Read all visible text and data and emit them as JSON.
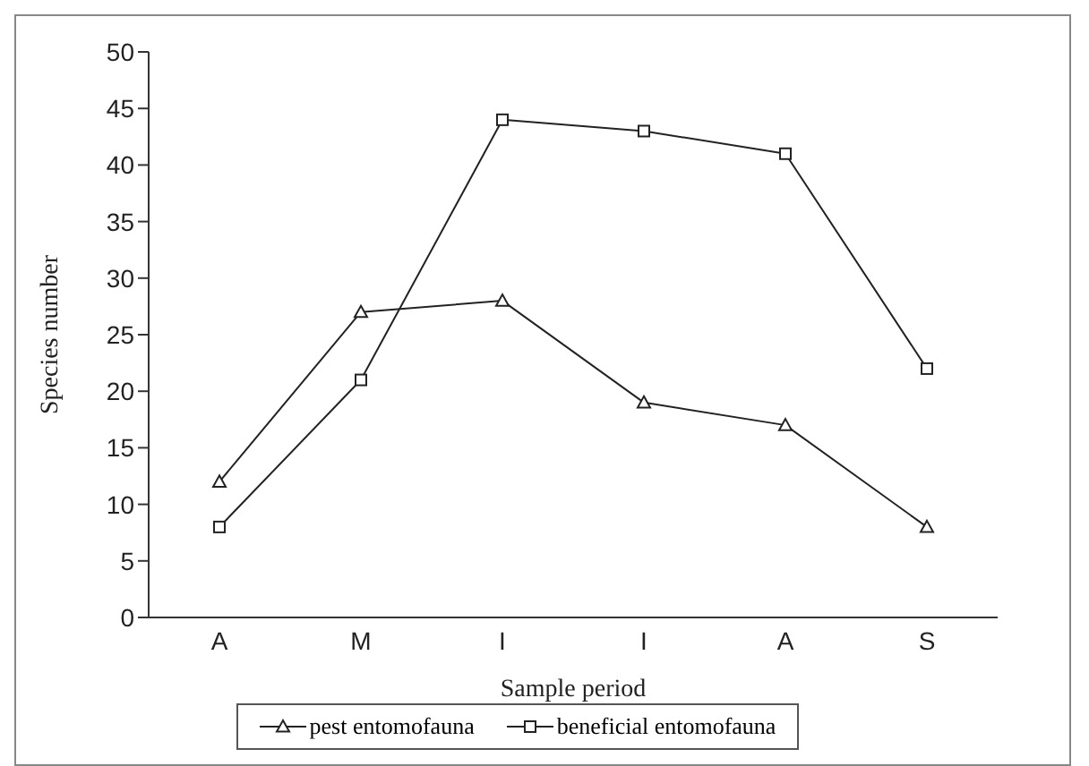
{
  "chart_data": {
    "type": "line",
    "xlabel": "Sample period",
    "ylabel": "Species number",
    "categories": [
      "A",
      "M",
      "I",
      "I",
      "A",
      "S"
    ],
    "series": [
      {
        "name": "pest entomofauna",
        "color": "#222222",
        "marker": "triangle",
        "values": [
          12,
          27,
          28,
          19,
          17,
          8
        ]
      },
      {
        "name": "beneficial entomofauna",
        "color": "#222222",
        "marker": "square",
        "values": [
          8,
          21,
          44,
          43,
          41,
          22
        ]
      }
    ],
    "ylim": [
      0,
      50
    ],
    "yticks": [
      0,
      5,
      10,
      15,
      20,
      25,
      30,
      35,
      40,
      45,
      50
    ],
    "grid": false,
    "legend": "bottom"
  }
}
